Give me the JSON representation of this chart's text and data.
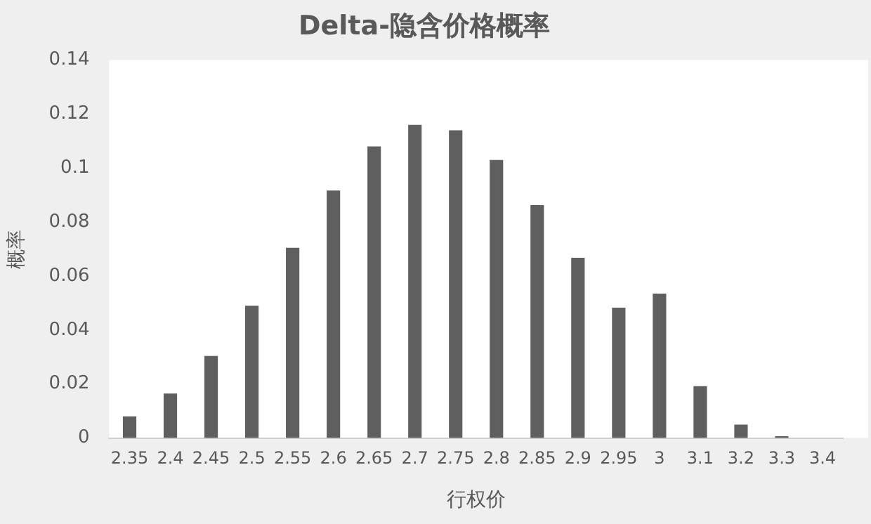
{
  "chart_data": {
    "type": "bar",
    "title": "Delta-隐含价格概率",
    "xlabel": "行权价",
    "ylabel": "概率",
    "categories": [
      "2.35",
      "2.4",
      "2.45",
      "2.5",
      "2.55",
      "2.6",
      "2.65",
      "2.7",
      "2.75",
      "2.8",
      "2.85",
      "2.9",
      "2.95",
      "3",
      "3.1",
      "3.2",
      "3.3",
      "3.4"
    ],
    "values": [
      0.008,
      0.0165,
      0.0304,
      0.049,
      0.0705,
      0.0917,
      0.108,
      0.116,
      0.114,
      0.103,
      0.0863,
      0.0668,
      0.0483,
      0.0535,
      0.0192,
      0.005,
      0.0007,
      0
    ],
    "color": "#5f5f5f",
    "ylim": [
      0,
      0.14
    ],
    "yticks": [
      0,
      0.02,
      0.04,
      0.06,
      0.08,
      0.1,
      0.12,
      0.14
    ],
    "grid": false,
    "legend": false
  }
}
